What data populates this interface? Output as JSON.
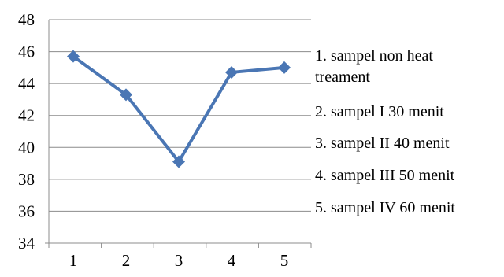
{
  "chart_data": {
    "type": "line",
    "title": "",
    "xlabel": "",
    "ylabel": "",
    "x": [
      1,
      2,
      3,
      4,
      5
    ],
    "xticks": [
      "1",
      "2",
      "3",
      "4",
      "5"
    ],
    "yticks": [
      "34",
      "36",
      "38",
      "40",
      "42",
      "44",
      "46",
      "48"
    ],
    "ylim": [
      34,
      48
    ],
    "grid": "horizontal",
    "legend": "none",
    "series": [
      {
        "values": [
          45.7,
          43.3,
          39.1,
          44.7,
          45.0
        ],
        "color": "#4a76b4",
        "marker": "diamond"
      }
    ],
    "annotations": [
      {
        "lines": [
          "1. sampel non heat",
          "treament"
        ]
      },
      {
        "lines": [
          "2. sampel I 30 menit"
        ]
      },
      {
        "lines": [
          "3. sampel II 40 menit"
        ]
      },
      {
        "lines": [
          "4. sampel III  50 menit"
        ]
      },
      {
        "lines": [
          "5. sampel IV 60 menit"
        ]
      }
    ],
    "gridColor": "#8c8c8c",
    "axisColor": "#8c8c8c"
  }
}
